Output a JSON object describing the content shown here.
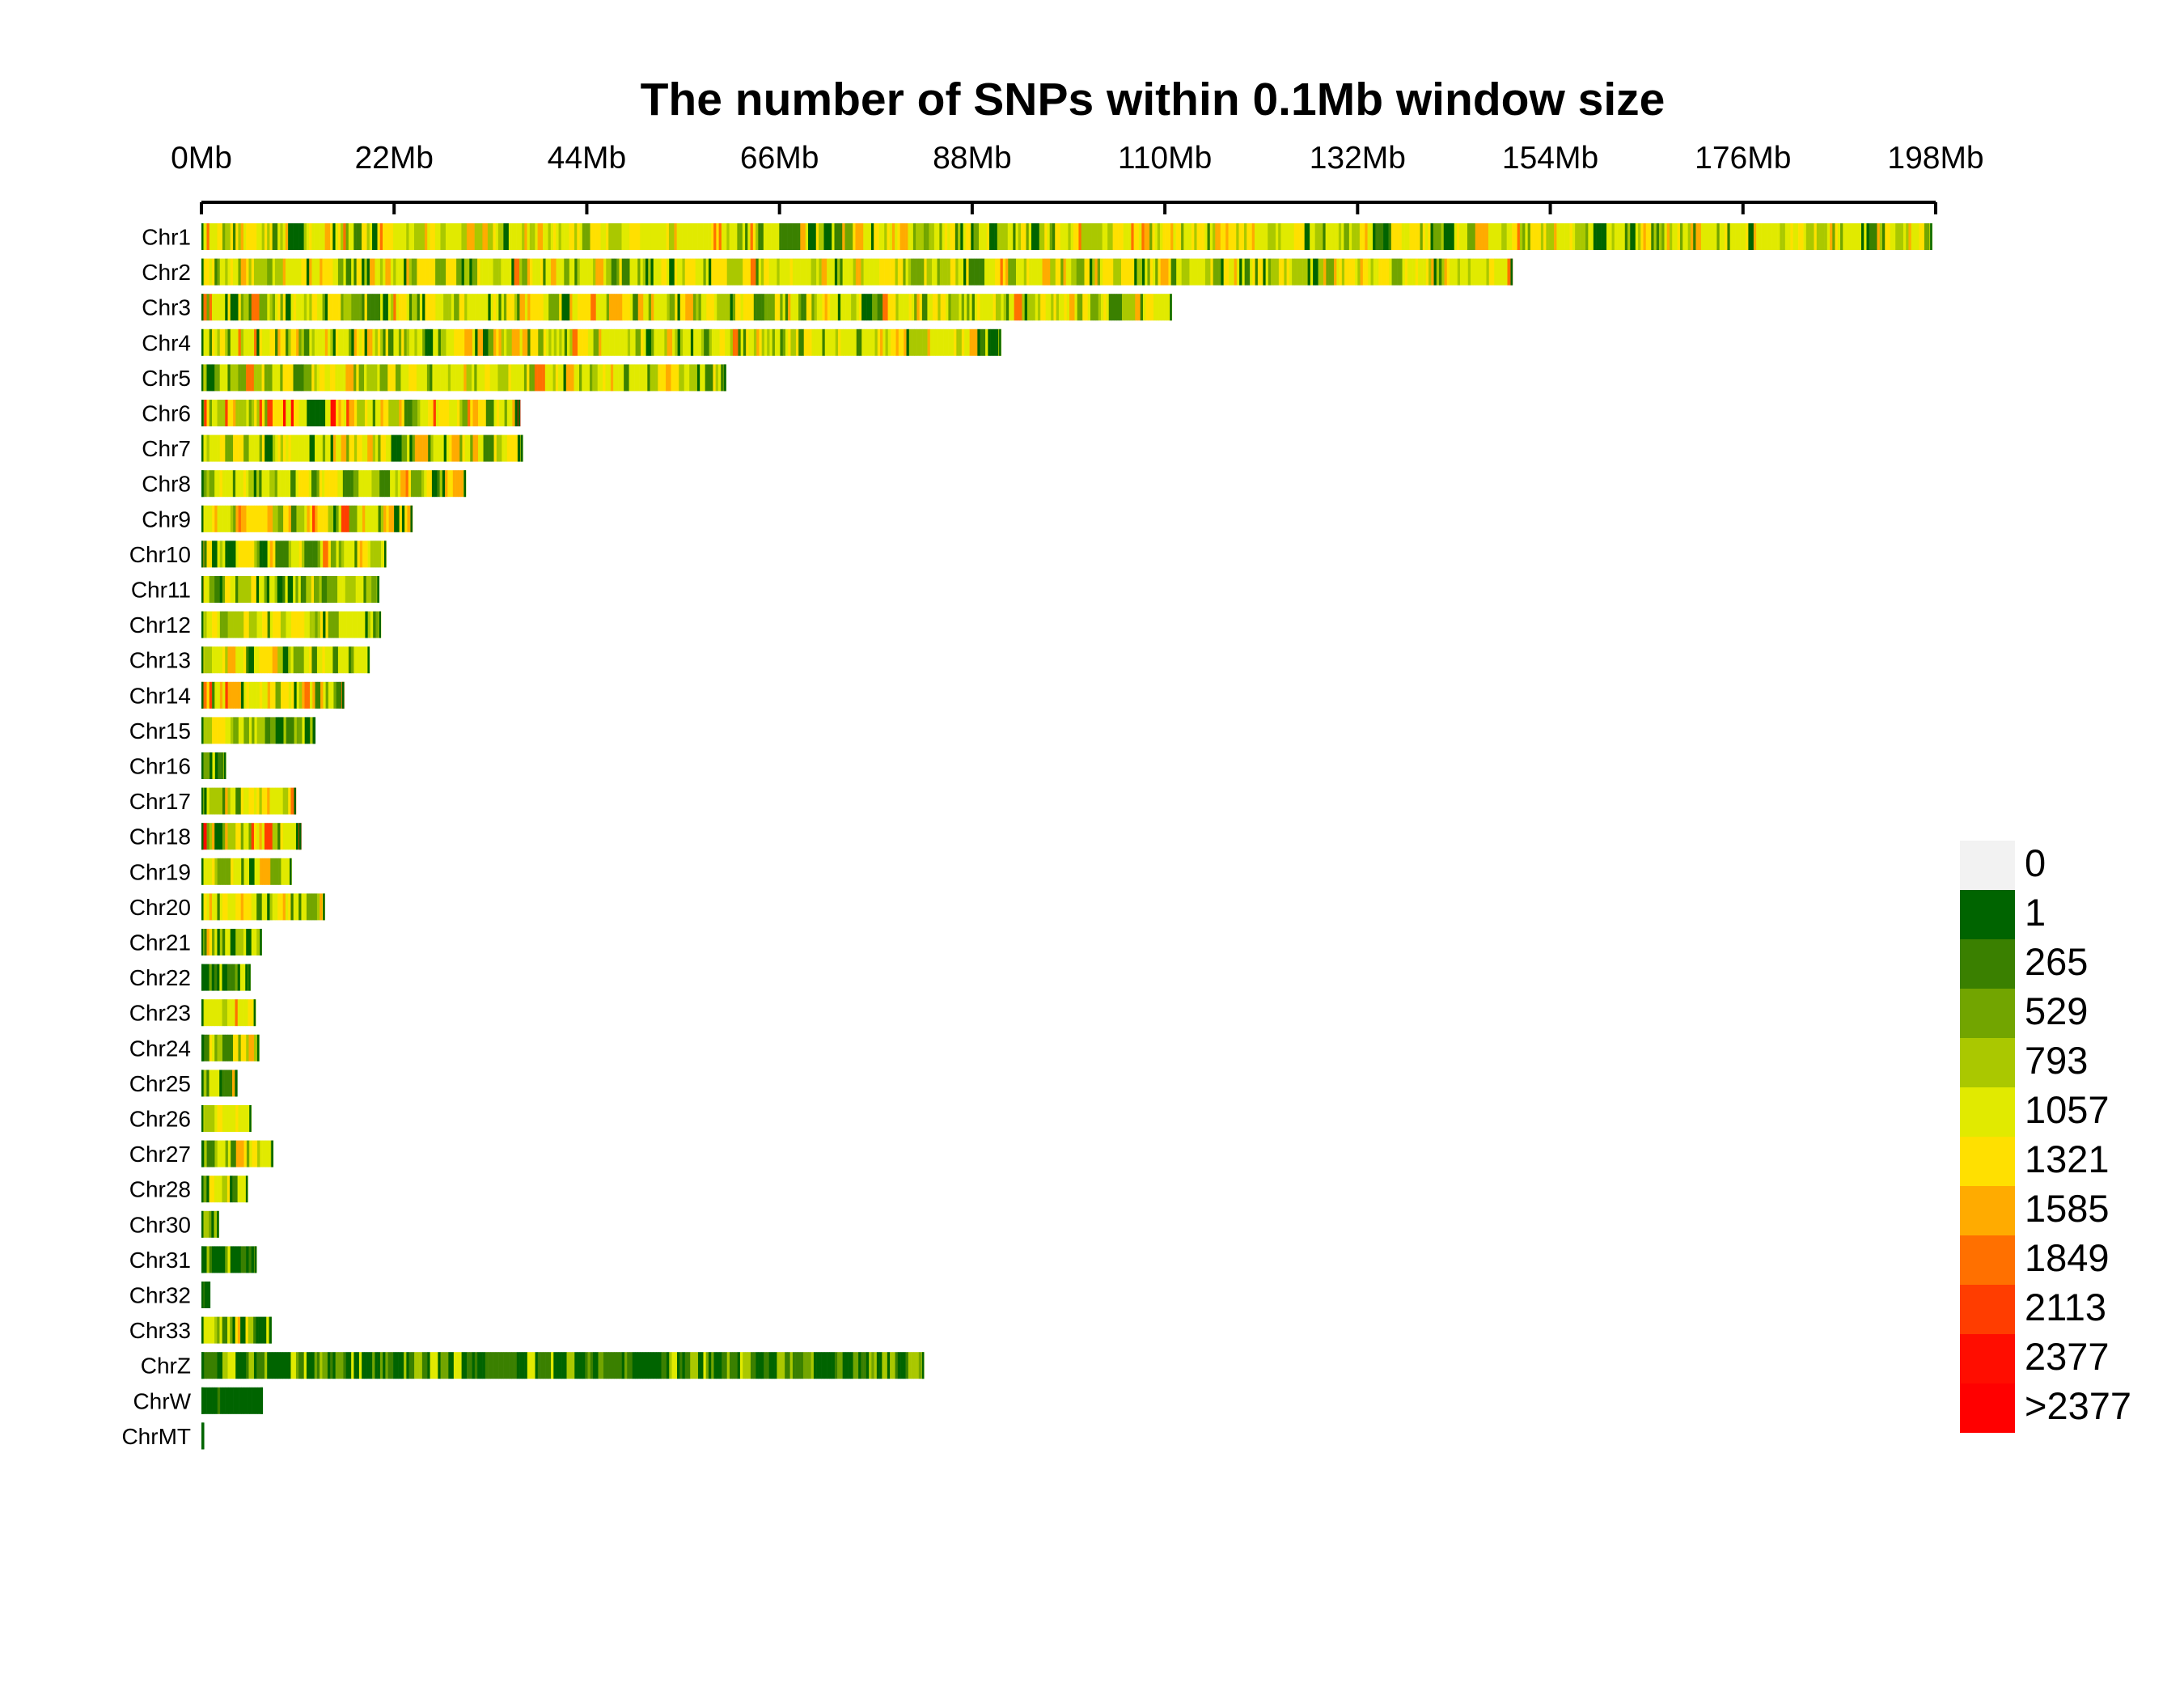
{
  "chart_data": {
    "type": "heatmap",
    "title": "The number of SNPs within 0.1Mb window size",
    "xlabel": "",
    "ylabel": "",
    "window_size_mb": 0.1,
    "x_axis": {
      "unit": "Mb",
      "range": [
        0,
        198
      ],
      "ticks": [
        0,
        22,
        44,
        66,
        88,
        110,
        132,
        154,
        176,
        198
      ],
      "tick_labels": [
        "0Mb",
        "22Mb",
        "44Mb",
        "66Mb",
        "88Mb",
        "110Mb",
        "132Mb",
        "154Mb",
        "176Mb",
        "198Mb"
      ]
    },
    "chromosomes": [
      {
        "name": "Chr1",
        "length_mb": 197.6,
        "profile": "yellow"
      },
      {
        "name": "Chr2",
        "length_mb": 149.7,
        "profile": "yellow"
      },
      {
        "name": "Chr3",
        "length_mb": 110.8,
        "profile": "yellow"
      },
      {
        "name": "Chr4",
        "length_mb": 91.3,
        "profile": "yellow"
      },
      {
        "name": "Chr5",
        "length_mb": 59.9,
        "profile": "yellow"
      },
      {
        "name": "Chr6",
        "length_mb": 36.4,
        "profile": "hot"
      },
      {
        "name": "Chr7",
        "length_mb": 36.7,
        "profile": "yellow"
      },
      {
        "name": "Chr8",
        "length_mb": 30.2,
        "profile": "yellow"
      },
      {
        "name": "Chr9",
        "length_mb": 24.1,
        "profile": "hot"
      },
      {
        "name": "Chr10",
        "length_mb": 21.1,
        "profile": "yellow"
      },
      {
        "name": "Chr11",
        "length_mb": 20.3,
        "profile": "mixed"
      },
      {
        "name": "Chr12",
        "length_mb": 20.5,
        "profile": "yellow"
      },
      {
        "name": "Chr13",
        "length_mb": 19.2,
        "profile": "yellow"
      },
      {
        "name": "Chr14",
        "length_mb": 16.3,
        "profile": "hot"
      },
      {
        "name": "Chr15",
        "length_mb": 13.0,
        "profile": "mixed"
      },
      {
        "name": "Chr16",
        "length_mb": 2.8,
        "profile": "green"
      },
      {
        "name": "Chr17",
        "length_mb": 10.8,
        "profile": "yellow"
      },
      {
        "name": "Chr18",
        "length_mb": 11.4,
        "profile": "hot"
      },
      {
        "name": "Chr19",
        "length_mb": 10.3,
        "profile": "yellow"
      },
      {
        "name": "Chr20",
        "length_mb": 14.1,
        "profile": "yellow"
      },
      {
        "name": "Chr21",
        "length_mb": 6.9,
        "profile": "yellow"
      },
      {
        "name": "Chr22",
        "length_mb": 5.6,
        "profile": "green"
      },
      {
        "name": "Chr23",
        "length_mb": 6.2,
        "profile": "yellow"
      },
      {
        "name": "Chr24",
        "length_mb": 6.6,
        "profile": "yellow"
      },
      {
        "name": "Chr25",
        "length_mb": 4.1,
        "profile": "mixed"
      },
      {
        "name": "Chr26",
        "length_mb": 5.7,
        "profile": "yellow"
      },
      {
        "name": "Chr27",
        "length_mb": 8.2,
        "profile": "mixed"
      },
      {
        "name": "Chr28",
        "length_mb": 5.3,
        "profile": "yellow"
      },
      {
        "name": "Chr30",
        "length_mb": 2.0,
        "profile": "green"
      },
      {
        "name": "Chr31",
        "length_mb": 6.3,
        "profile": "green"
      },
      {
        "name": "Chr32",
        "length_mb": 1.0,
        "profile": "green"
      },
      {
        "name": "Chr33",
        "length_mb": 8.0,
        "profile": "mixed"
      },
      {
        "name": "ChrZ",
        "length_mb": 82.5,
        "profile": "green"
      },
      {
        "name": "ChrW",
        "length_mb": 7.0,
        "profile": "dark"
      },
      {
        "name": "ChrMT",
        "length_mb": 0.3,
        "profile": "dark"
      }
    ],
    "legend": {
      "position": "right",
      "bins": [
        {
          "label": "0",
          "color": "#f2f2f2"
        },
        {
          "label": "1",
          "color": "#006400"
        },
        {
          "label": "265",
          "color": "#3a8000"
        },
        {
          "label": "529",
          "color": "#72a500"
        },
        {
          "label": "793",
          "color": "#aac800"
        },
        {
          "label": "1057",
          "color": "#e1ea00"
        },
        {
          "label": "1321",
          "color": "#ffe000"
        },
        {
          "label": "1585",
          "color": "#ffab00"
        },
        {
          "label": "1849",
          "color": "#ff7000"
        },
        {
          "label": "2113",
          "color": "#ff3d00"
        },
        {
          "label": "2377",
          "color": "#ff0d00"
        },
        {
          "label": ">2377",
          "color": "#ff0000"
        }
      ]
    },
    "grid": false
  }
}
